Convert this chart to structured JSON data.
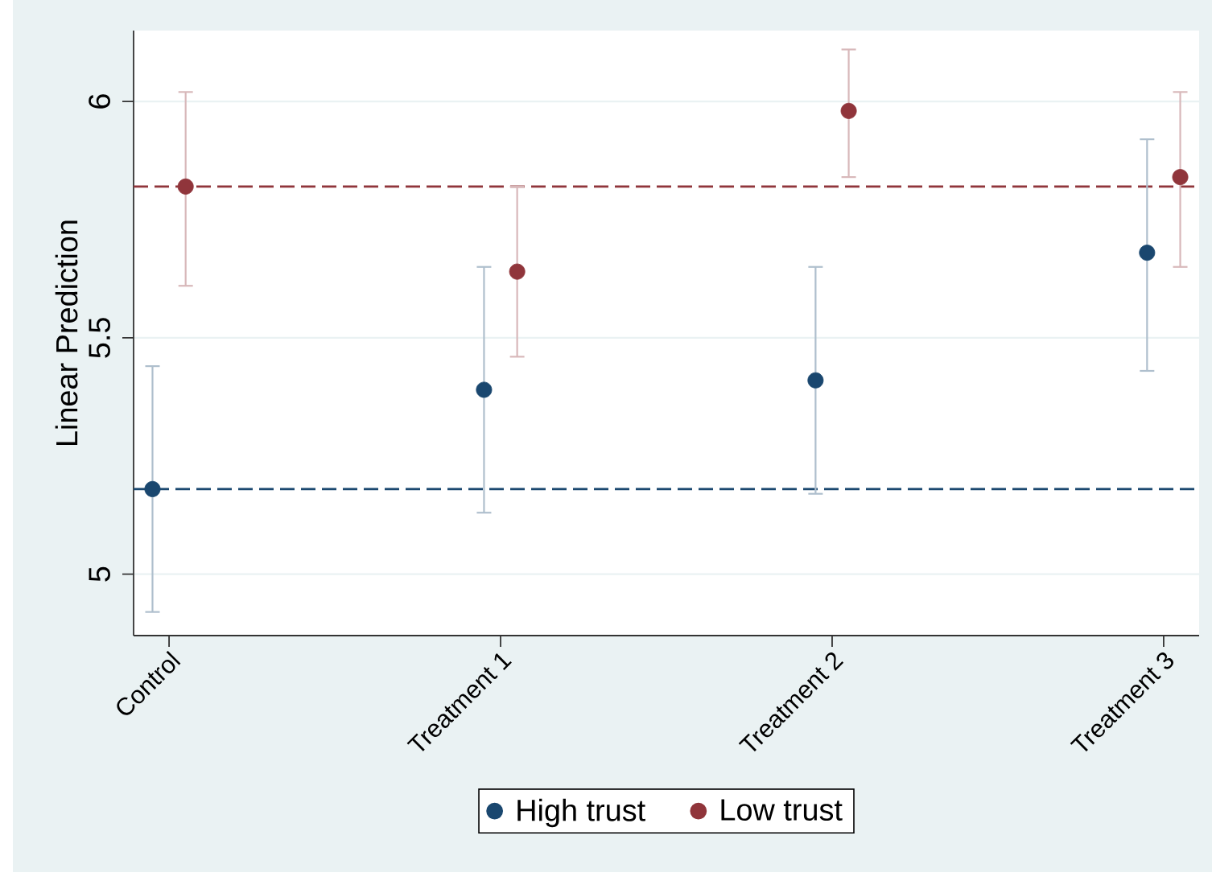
{
  "chart_data": {
    "type": "scatter",
    "ylabel": "Linear Prediction",
    "categories": [
      "Control",
      "Treatment 1",
      "Treatment 2",
      "Treatment 3"
    ],
    "series": [
      {
        "name": "High trust",
        "color": "#1a476f",
        "values": [
          5.18,
          5.39,
          5.41,
          5.68
        ],
        "errors": [
          [
            4.92,
            5.44
          ],
          [
            5.13,
            5.65
          ],
          [
            5.17,
            5.65
          ],
          [
            5.43,
            5.92
          ]
        ]
      },
      {
        "name": "Low trust",
        "color": "#90353b",
        "values": [
          5.82,
          5.64,
          5.98,
          5.84
        ],
        "errors": [
          [
            5.61,
            6.02
          ],
          [
            5.46,
            5.82
          ],
          [
            5.84,
            6.11
          ],
          [
            5.65,
            6.02
          ]
        ]
      }
    ],
    "ylim": [
      4.87,
      6.15
    ],
    "yticks": [
      5,
      5.5,
      6
    ],
    "grid": "y",
    "legend": "bottom",
    "marker": "circle",
    "ref_lines": [
      {
        "axis": "y",
        "value": 5.82,
        "color": "#90353b",
        "line_style": "dashed"
      },
      {
        "axis": "y",
        "value": 5.18,
        "color": "#1a476f",
        "line_style": "dashed"
      }
    ]
  }
}
